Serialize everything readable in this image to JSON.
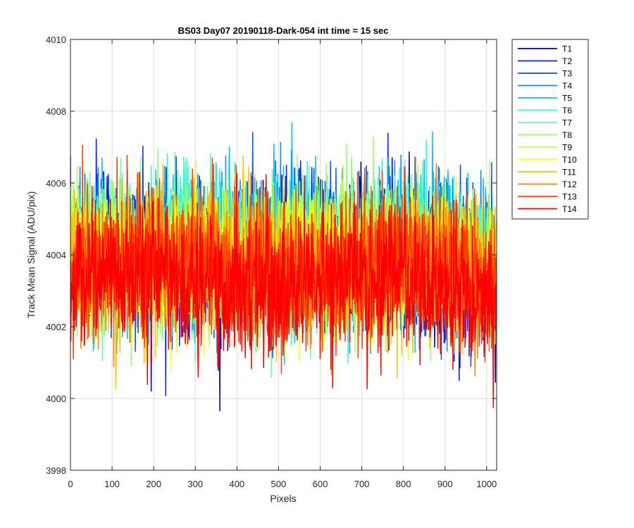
{
  "chart_data": {
    "type": "line",
    "title": "BS03 Day07 20190118-Dark-054 int time = 15 sec",
    "xlabel": "Pixels",
    "ylabel": "Track Mean Signal (ADU/pix)",
    "xlim": [
      0,
      1024
    ],
    "ylim": [
      3998,
      4010
    ],
    "xticks": [
      0,
      100,
      200,
      300,
      400,
      500,
      600,
      700,
      800,
      900,
      1000
    ],
    "yticks": [
      3998,
      4000,
      4002,
      4004,
      4006,
      4008,
      4010
    ],
    "grid": true,
    "legend_position": "outside-top-right",
    "n_points_per_series": 1024,
    "series": [
      {
        "name": "T1",
        "color": "#00008f",
        "mean": 4004.0,
        "spread": 1.6
      },
      {
        "name": "T2",
        "color": "#0020ff",
        "mean": 4004.0,
        "spread": 1.6
      },
      {
        "name": "T3",
        "color": "#0050ff",
        "mean": 4004.1,
        "spread": 1.6
      },
      {
        "name": "T4",
        "color": "#0090ff",
        "mean": 4004.1,
        "spread": 1.6
      },
      {
        "name": "T5",
        "color": "#00c0ff",
        "mean": 4004.2,
        "spread": 1.6
      },
      {
        "name": "T6",
        "color": "#20ffe0",
        "mean": 4004.2,
        "spread": 1.5
      },
      {
        "name": "T7",
        "color": "#60ffa0",
        "mean": 4004.1,
        "spread": 1.5
      },
      {
        "name": "T8",
        "color": "#90ff70",
        "mean": 4004.1,
        "spread": 1.5
      },
      {
        "name": "T9",
        "color": "#c0ff40",
        "mean": 4004.0,
        "spread": 1.5
      },
      {
        "name": "T10",
        "color": "#ffff00",
        "mean": 4003.9,
        "spread": 1.5
      },
      {
        "name": "T11",
        "color": "#ffc000",
        "mean": 4003.8,
        "spread": 1.5
      },
      {
        "name": "T12",
        "color": "#ff8000",
        "mean": 4003.7,
        "spread": 1.5
      },
      {
        "name": "T13",
        "color": "#ff4000",
        "mean": 4003.6,
        "spread": 1.5
      },
      {
        "name": "T14",
        "color": "#ff0000",
        "mean": 4003.3,
        "spread": 1.6
      }
    ]
  }
}
